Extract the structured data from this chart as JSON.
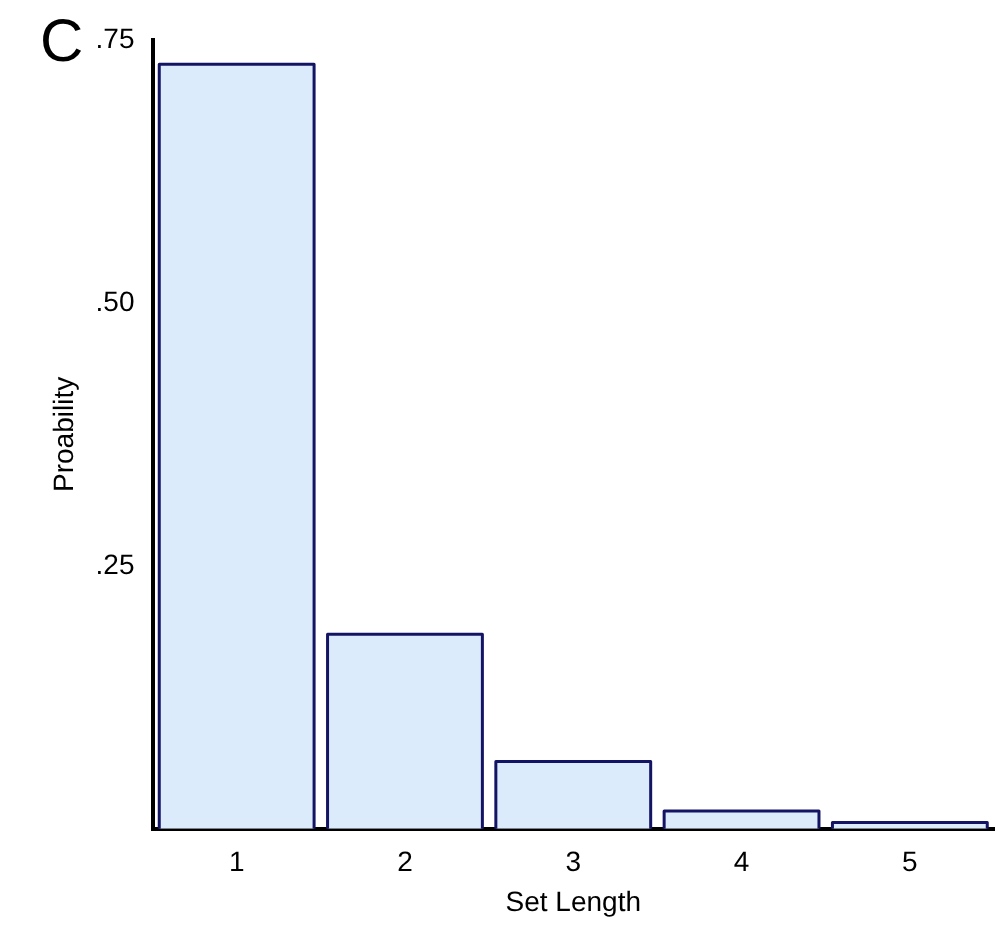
{
  "chart_data": {
    "type": "bar",
    "title": "C",
    "xlabel": "Set Length",
    "ylabel": "Proability",
    "categories": [
      "1",
      "2",
      "3",
      "4",
      "5"
    ],
    "values": [
      0.727,
      0.185,
      0.064,
      0.017,
      0.006
    ],
    "color": "#dcebfc",
    "ylim": [
      0,
      0.75
    ],
    "yticks": [
      {
        "value": 0.25,
        "label": ".25"
      },
      {
        "value": 0.5,
        "label": ".50"
      },
      {
        "value": 0.75,
        "label": ".75"
      }
    ],
    "grid": false,
    "legend": false
  }
}
